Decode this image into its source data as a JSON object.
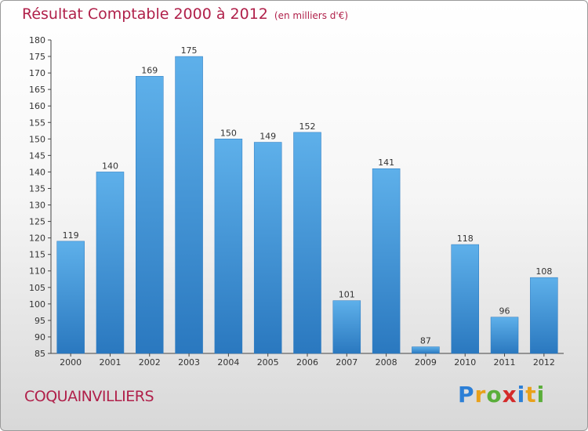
{
  "title": "Résultat Comptable 2000 à 2012",
  "subtitle": "(en milliers d'€)",
  "commune": "COQUAINVILLIERS",
  "logo": {
    "letters": [
      "P",
      "r",
      "o",
      "x",
      "i",
      "t",
      "i"
    ],
    "colors": [
      "#2c7fd6",
      "#e9a11a",
      "#5aae3a",
      "#d42a2a",
      "#2c7fd6",
      "#e9a11a",
      "#5aae3a"
    ]
  },
  "colors": {
    "bar": "#4a9fdf",
    "bar_dark": "#2f7fc4",
    "title": "#b0204a"
  },
  "chart_data": {
    "type": "bar",
    "title": "Résultat Comptable 2000 à 2012",
    "subtitle": "(en milliers d'€)",
    "categories": [
      "2000",
      "2001",
      "2002",
      "2003",
      "2004",
      "2005",
      "2006",
      "2007",
      "2008",
      "2009",
      "2010",
      "2011",
      "2012"
    ],
    "values": [
      119,
      140,
      169,
      175,
      150,
      149,
      152,
      101,
      141,
      87,
      118,
      96,
      108
    ],
    "ylim": [
      85,
      180
    ],
    "yticks": [
      85,
      90,
      95,
      100,
      105,
      110,
      115,
      120,
      125,
      130,
      135,
      140,
      145,
      150,
      155,
      160,
      165,
      170,
      175,
      180
    ],
    "grid": false
  }
}
